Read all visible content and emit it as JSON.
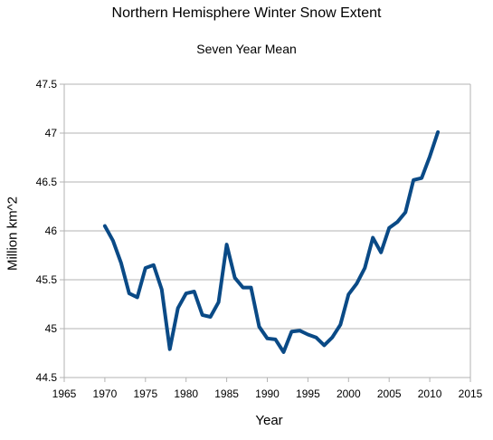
{
  "chart_data": {
    "type": "line",
    "title": "Northern Hemisphere Winter Snow Extent",
    "subtitle": "Seven Year Mean",
    "xlabel": "Year",
    "ylabel": "Million km^2",
    "xlim": [
      1965,
      2015
    ],
    "ylim": [
      44.5,
      47.5
    ],
    "x_ticks": [
      "1965",
      "1970",
      "1975",
      "1980",
      "1985",
      "1990",
      "1995",
      "2000",
      "2005",
      "2010",
      "2015"
    ],
    "y_ticks": [
      "44.5",
      "45",
      "45.5",
      "46",
      "46.5",
      "47",
      "47.5"
    ],
    "grid": "horizontal",
    "legend": "none",
    "series": [
      {
        "color": "#0a4a86",
        "x": [
          1970,
          1971,
          1972,
          1973,
          1974,
          1975,
          1976,
          1977,
          1978,
          1979,
          1980,
          1981,
          1982,
          1983,
          1984,
          1985,
          1986,
          1987,
          1988,
          1989,
          1990,
          1991,
          1992,
          1993,
          1994,
          1995,
          1996,
          1997,
          1998,
          1999,
          2000,
          2001,
          2002,
          2003,
          2004,
          2005,
          2006,
          2007,
          2008,
          2009,
          2010,
          2011
        ],
        "values": [
          46.05,
          45.9,
          45.67,
          45.36,
          45.32,
          45.62,
          45.65,
          45.4,
          44.79,
          45.21,
          45.36,
          45.38,
          45.14,
          45.12,
          45.27,
          45.86,
          45.52,
          45.42,
          45.42,
          45.02,
          44.9,
          44.89,
          44.76,
          44.97,
          44.98,
          44.94,
          44.91,
          44.83,
          44.91,
          45.04,
          45.35,
          45.46,
          45.62,
          45.93,
          45.78,
          46.03,
          46.09,
          46.19,
          46.52,
          46.54,
          46.76,
          47.01
        ]
      }
    ]
  }
}
